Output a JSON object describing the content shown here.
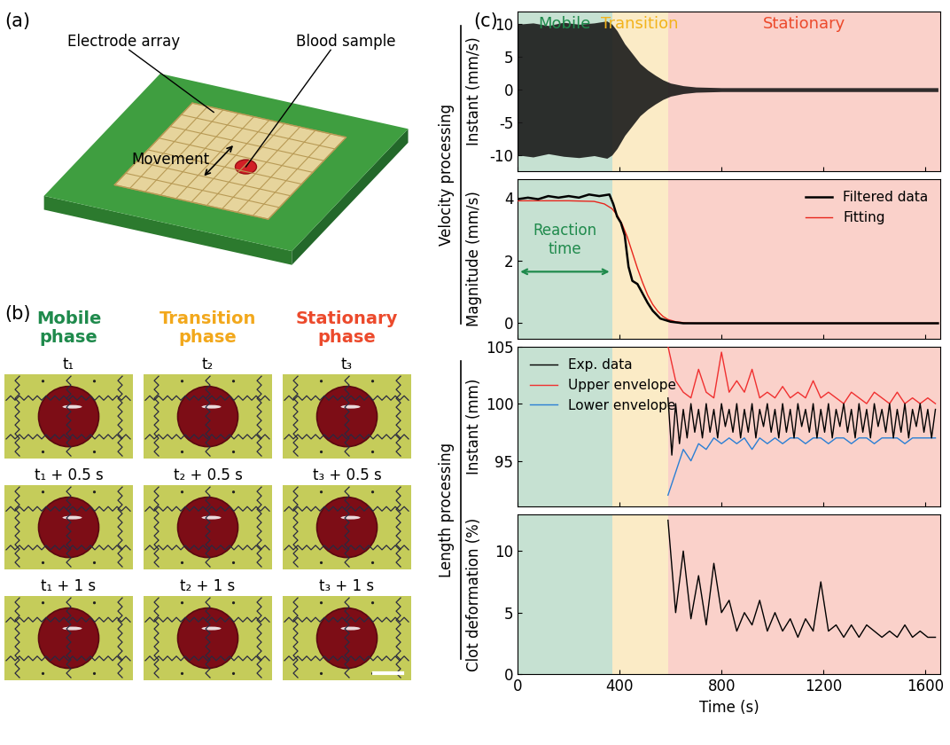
{
  "panel_labels": [
    "(a)",
    "(b)",
    "(c)"
  ],
  "panel_a": {
    "electrode_array": "Electrode array",
    "blood_sample": "Blood sample",
    "movement": "Movement"
  },
  "panel_b": {
    "columns": [
      {
        "header": "Mobile\nphase",
        "color": "#1f8a4c",
        "times": [
          "t₁",
          "t₁ + 0.5 s",
          "t₁ + 1 s"
        ]
      },
      {
        "header": "Transition\nphase",
        "color": "#f2a81c",
        "times": [
          "t₂",
          "t₂ + 0.5 s",
          "t₂ + 1 s"
        ]
      },
      {
        "header": "Stationary\nphase",
        "color": "#ec4a2c",
        "times": [
          "t₃",
          "t₃ + 0.5 s",
          "t₃ + 1 s"
        ]
      }
    ]
  },
  "panel_c": {
    "phases": [
      {
        "name": "Mobile",
        "start": 0,
        "end": 370,
        "color": "#1f8a4c"
      },
      {
        "name": "Transition",
        "start": 370,
        "end": 590,
        "color": "#f2b31c"
      },
      {
        "name": "Stationary",
        "start": 590,
        "end": 1660,
        "color": "#ec4a2c"
      }
    ]
  },
  "chart_data": [
    {
      "type": "area",
      "group": "Velocity processing",
      "y_label": "Instant (mm/s)",
      "color": "#1a1a1a",
      "x": [
        0,
        60,
        120,
        180,
        240,
        300,
        350,
        370,
        390,
        420,
        450,
        480,
        510,
        540,
        570,
        600,
        650,
        700,
        800,
        1000,
        1200,
        1400,
        1650
      ],
      "upper": [
        10,
        10.2,
        9.8,
        10.3,
        10,
        10.2,
        10.5,
        10,
        9,
        7,
        5.5,
        4,
        3,
        2.2,
        1.5,
        1,
        0.6,
        0.4,
        0.3,
        0.3,
        0.3,
        0.3,
        0.3
      ],
      "lower": [
        -10,
        -10.3,
        -9.8,
        -10.2,
        -10.4,
        -10.1,
        -10.5,
        -10,
        -9,
        -7,
        -5.5,
        -4,
        -3,
        -2.2,
        -1.5,
        -1,
        -0.6,
        -0.4,
        -0.3,
        -0.3,
        -0.3,
        -0.3,
        -0.3
      ],
      "xlim": [
        0,
        1660
      ],
      "ylim": [
        -12.5,
        12
      ],
      "xticks": [
        0,
        400,
        800,
        1200,
        1600
      ],
      "yticks": [
        -10,
        -5,
        0,
        5,
        10
      ],
      "tick_labels": "y"
    },
    {
      "type": "line",
      "group": "Velocity processing",
      "y_label": "Magnitude (mm/s)",
      "series": [
        {
          "name": "Filtered data",
          "color": "#000000",
          "x": [
            0,
            40,
            80,
            120,
            160,
            200,
            240,
            280,
            320,
            360,
            375,
            390,
            405,
            420,
            435,
            450,
            470,
            490,
            510,
            530,
            560,
            600,
            650,
            800,
            1000,
            1200,
            1400,
            1650
          ],
          "values": [
            3.95,
            4.0,
            3.95,
            4.05,
            4.0,
            4.05,
            4.0,
            4.1,
            4.05,
            4.1,
            3.8,
            3.4,
            3.2,
            2.8,
            1.8,
            1.35,
            1.25,
            0.95,
            0.65,
            0.4,
            0.15,
            0.05,
            0.0,
            0.0,
            0.0,
            0.0,
            0.0,
            0.0
          ]
        },
        {
          "name": "Fitting",
          "color": "#e8251c",
          "x": [
            0,
            200,
            300,
            340,
            370,
            390,
            410,
            430,
            450,
            470,
            490,
            510,
            530,
            550,
            570,
            590,
            620,
            660,
            700,
            1650
          ],
          "values": [
            3.9,
            3.9,
            3.88,
            3.8,
            3.65,
            3.45,
            3.15,
            2.75,
            2.25,
            1.75,
            1.3,
            0.9,
            0.6,
            0.38,
            0.22,
            0.12,
            0.05,
            0.01,
            0.0,
            0.0
          ]
        }
      ],
      "annotations": [
        {
          "text": "Reaction\ntime",
          "phase": "Mobile"
        }
      ],
      "legend": "upper right",
      "xlim": [
        0,
        1660
      ],
      "ylim": [
        -0.5,
        4.6
      ],
      "xticks": [
        0,
        400,
        800,
        1200,
        1600
      ],
      "yticks": [
        0,
        2,
        4
      ],
      "tick_labels": "y"
    },
    {
      "type": "line",
      "group": "Length processing",
      "y_label": "Instant (mm)",
      "series": [
        {
          "name": "Exp. data",
          "color": "#000000",
          "x": [
            590,
            605,
            620,
            635,
            650,
            665,
            680,
            695,
            710,
            725,
            740,
            755,
            770,
            785,
            800,
            815,
            830,
            845,
            860,
            875,
            890,
            905,
            920,
            935,
            950,
            965,
            980,
            995,
            1010,
            1025,
            1040,
            1055,
            1070,
            1085,
            1100,
            1115,
            1130,
            1145,
            1160,
            1175,
            1190,
            1205,
            1220,
            1235,
            1250,
            1265,
            1280,
            1295,
            1310,
            1325,
            1340,
            1355,
            1370,
            1385,
            1400,
            1415,
            1430,
            1445,
            1460,
            1475,
            1490,
            1505,
            1520,
            1535,
            1550,
            1565,
            1580,
            1595,
            1610,
            1625,
            1640
          ],
          "values": [
            100.5,
            95.5,
            100,
            96.5,
            99.5,
            97,
            100,
            97.5,
            99.5,
            97,
            100,
            97.5,
            99.5,
            97,
            100,
            98,
            99.5,
            97.5,
            100,
            97,
            99.5,
            97.5,
            100,
            97,
            99.5,
            98,
            100,
            97.5,
            99.5,
            97,
            100,
            97.5,
            99.5,
            97,
            100,
            98,
            99.5,
            97.5,
            100,
            97,
            99.5,
            97.5,
            100,
            97,
            99.5,
            98,
            100,
            97.5,
            99.5,
            97,
            100,
            97.5,
            99.5,
            97,
            100,
            98,
            99.5,
            97.5,
            100,
            97,
            99.5,
            97.5,
            100,
            97,
            99.5,
            98,
            100,
            97.5,
            99.5,
            97,
            99.5
          ]
        },
        {
          "name": "Upper envelope",
          "color": "#f03030",
          "x": [
            590,
            620,
            650,
            680,
            710,
            740,
            770,
            800,
            830,
            860,
            890,
            920,
            950,
            980,
            1010,
            1040,
            1070,
            1100,
            1130,
            1160,
            1190,
            1220,
            1250,
            1280,
            1310,
            1340,
            1370,
            1400,
            1430,
            1460,
            1490,
            1520,
            1550,
            1580,
            1610,
            1640
          ],
          "values": [
            105,
            102,
            101,
            100.5,
            103,
            101,
            100.5,
            104.5,
            101,
            102,
            101,
            103,
            100.5,
            101,
            100.5,
            101.5,
            100.5,
            101,
            100.5,
            102,
            100.5,
            101,
            100.5,
            100,
            101,
            100.5,
            100,
            101,
            100.5,
            100,
            101,
            100,
            100.5,
            100,
            100.5,
            100
          ]
        },
        {
          "name": "Lower envelope",
          "color": "#2a7fd4",
          "x": [
            590,
            620,
            650,
            680,
            710,
            740,
            770,
            800,
            830,
            860,
            890,
            920,
            950,
            980,
            1010,
            1040,
            1070,
            1100,
            1130,
            1160,
            1190,
            1220,
            1250,
            1280,
            1310,
            1340,
            1370,
            1400,
            1430,
            1460,
            1490,
            1520,
            1550,
            1580,
            1610,
            1640
          ],
          "values": [
            92,
            94,
            96,
            95,
            96.5,
            96,
            97,
            96.5,
            97,
            96.5,
            97,
            96,
            97,
            96.5,
            97,
            96.5,
            97,
            97,
            96.5,
            97,
            97,
            96.5,
            97,
            97,
            96.5,
            97,
            97,
            96.5,
            97,
            97,
            97,
            96.5,
            97,
            97,
            97,
            97
          ]
        }
      ],
      "legend": "upper left",
      "xlim": [
        0,
        1660
      ],
      "ylim": [
        91,
        105
      ],
      "xticks": [
        0,
        400,
        800,
        1200,
        1600
      ],
      "yticks": [
        95,
        100,
        105
      ],
      "tick_labels": "y"
    },
    {
      "type": "line",
      "group": "Length processing",
      "y_label": "Clot deformation (%)",
      "x_label": "Time (s)",
      "color": "#000000",
      "x": [
        590,
        620,
        650,
        680,
        710,
        740,
        770,
        800,
        830,
        860,
        890,
        920,
        950,
        980,
        1010,
        1040,
        1070,
        1100,
        1130,
        1160,
        1190,
        1220,
        1250,
        1280,
        1310,
        1340,
        1370,
        1400,
        1430,
        1460,
        1490,
        1520,
        1550,
        1580,
        1610,
        1640
      ],
      "values": [
        12.5,
        5,
        10,
        4.5,
        8,
        4,
        9,
        5,
        6,
        3.5,
        5,
        4,
        6,
        3.5,
        5,
        3.5,
        4.5,
        3,
        4.5,
        3.5,
        7.5,
        3.5,
        4,
        3,
        4,
        3,
        4,
        3.5,
        3,
        3.5,
        3,
        4,
        3,
        3.5,
        3,
        3
      ],
      "xlim": [
        0,
        1660
      ],
      "ylim": [
        0,
        13
      ],
      "xticks": [
        0,
        400,
        800,
        1200,
        1600
      ],
      "yticks": [
        0,
        5,
        10
      ]
    }
  ]
}
